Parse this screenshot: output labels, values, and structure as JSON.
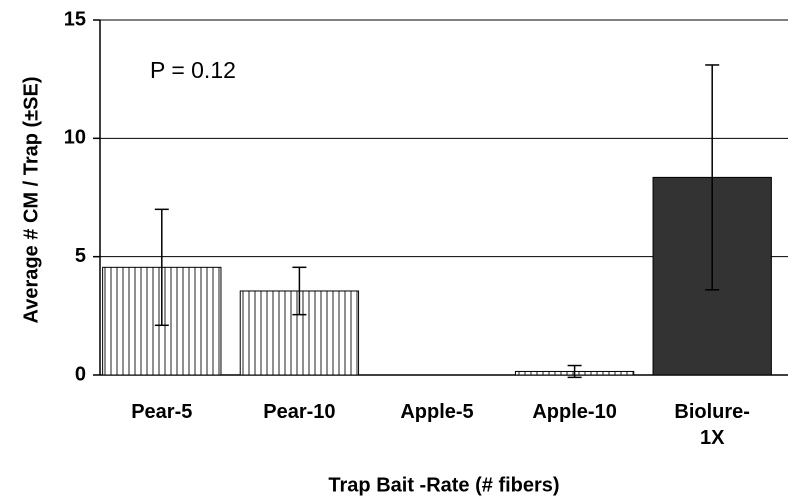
{
  "chart_data": {
    "type": "bar",
    "xlabel": "Trap Bait -Rate (# fibers)",
    "ylabel": "Average # CM / Trap (±SE)",
    "annotation": "P = 0.12",
    "categories": [
      "Pear-5",
      "Pear-10",
      "Apple-5",
      "Apple-10",
      "Biolure-1X"
    ],
    "values": [
      4.55,
      3.55,
      0,
      0.15,
      8.35
    ],
    "errors": [
      2.45,
      1.0,
      0,
      0.25,
      4.75
    ],
    "patterns": [
      "vertical-stripes",
      "vertical-stripes",
      "vertical-stripes",
      "vertical-stripes",
      "solid"
    ],
    "color": "#333333",
    "ylim": [
      0,
      15
    ],
    "yticks": [
      0,
      5,
      10,
      15
    ],
    "grid": true
  }
}
